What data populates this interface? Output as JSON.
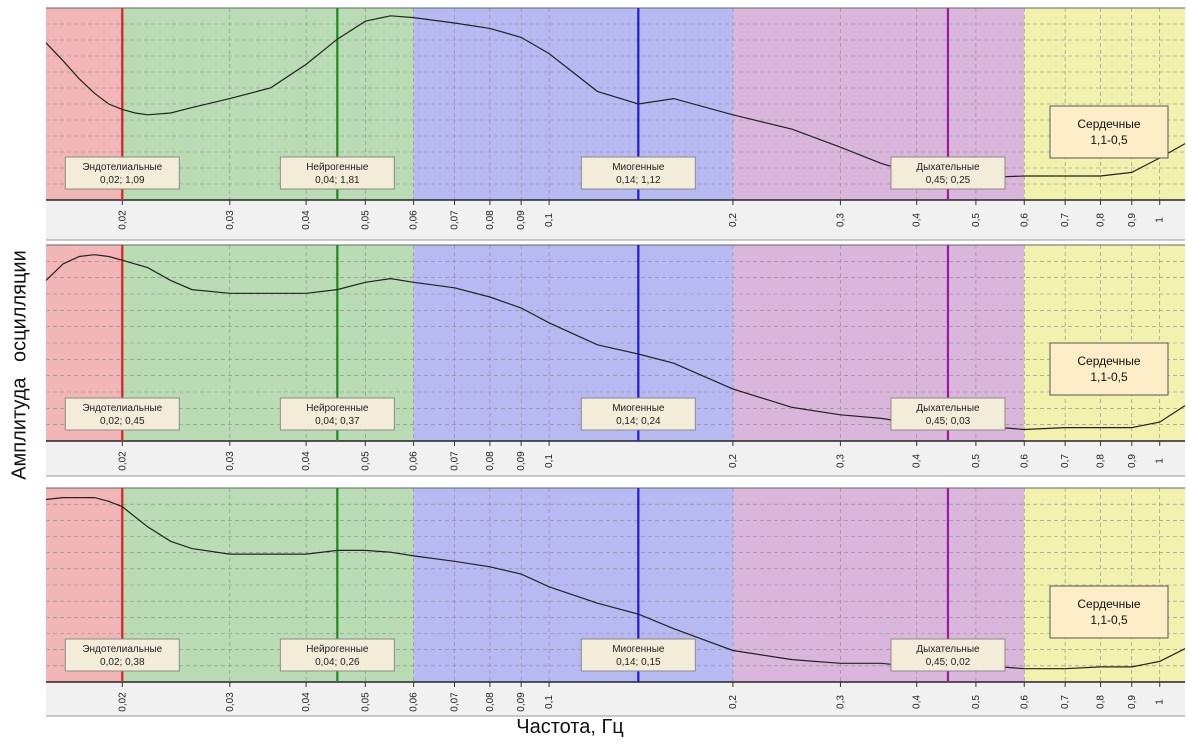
{
  "y_axis_label": "Амплитуда  осцилляции",
  "x_axis_label": "Частота, Гц",
  "chart_data": [
    {
      "type": "line",
      "xscale": "log",
      "xlim": [
        0.015,
        1.1
      ],
      "ylim": [
        0,
        1
      ],
      "grid": true,
      "x_ticks": [
        "0,02",
        "0,03",
        "0,04",
        "0,05",
        "0,06",
        "0,07",
        "0,08",
        "0,09",
        "0,1",
        "0,2",
        "0,3",
        "0,4",
        "0,5",
        "0,6",
        "0,7",
        "0,8",
        "0,9",
        "1"
      ],
      "bands": [
        {
          "name": "Эндотелиальные",
          "range": [
            0.015,
            0.02
          ],
          "color": "#f2b6b6"
        },
        {
          "name": "Эндотелиальные",
          "range": [
            0.02,
            0.06
          ],
          "color": "#b9dcb4"
        },
        {
          "name": "Миогенные",
          "range": [
            0.06,
            0.2
          ],
          "color": "#b7b9f2"
        },
        {
          "name": "Дыхательные",
          "range": [
            0.2,
            0.6
          ],
          "color": "#dbb6dc"
        },
        {
          "name": "Сердечные",
          "range": [
            0.6,
            1.1
          ],
          "color": "#f3f1ae"
        }
      ],
      "markers": [
        {
          "label": "Эндотелиальные",
          "value": "0,02; 1,09",
          "x": 0.02,
          "color": "#e01e1e"
        },
        {
          "label": "Нейрогенные",
          "value": "0,04; 1,81",
          "x": 0.045,
          "color": "#1a8a1a"
        },
        {
          "label": "Миогенные",
          "value": "0,14; 1,12",
          "x": 0.14,
          "color": "#1a1ae0"
        },
        {
          "label": "Дыхательные",
          "value": "0,45; 0,25",
          "x": 0.45,
          "color": "#9a1a9a"
        }
      ],
      "cardiac_box": {
        "title": "Сердечные",
        "range": "1,1-0,5"
      },
      "x": [
        0.015,
        0.016,
        0.017,
        0.018,
        0.019,
        0.02,
        0.021,
        0.022,
        0.024,
        0.026,
        0.03,
        0.035,
        0.04,
        0.045,
        0.05,
        0.055,
        0.06,
        0.07,
        0.08,
        0.09,
        0.1,
        0.12,
        0.14,
        0.16,
        0.2,
        0.25,
        0.3,
        0.35,
        0.4,
        0.45,
        0.5,
        0.6,
        0.7,
        0.8,
        0.9,
        1.0,
        1.1
      ],
      "values": [
        0.84,
        0.74,
        0.64,
        0.56,
        0.5,
        0.47,
        0.45,
        0.44,
        0.45,
        0.48,
        0.53,
        0.59,
        0.72,
        0.86,
        0.96,
        0.99,
        0.98,
        0.95,
        0.92,
        0.87,
        0.78,
        0.57,
        0.5,
        0.53,
        0.44,
        0.36,
        0.26,
        0.17,
        0.11,
        0.09,
        0.09,
        0.1,
        0.1,
        0.1,
        0.12,
        0.2,
        0.28
      ]
    },
    {
      "type": "line",
      "xscale": "log",
      "xlim": [
        0.015,
        1.1
      ],
      "ylim": [
        0,
        1
      ],
      "grid": true,
      "x_ticks": [
        "0,02",
        "0,03",
        "0,04",
        "0,05",
        "0,06",
        "0,07",
        "0,08",
        "0,09",
        "0,1",
        "0,2",
        "0,3",
        "0,4",
        "0,5",
        "0,6",
        "0,7",
        "0,8",
        "0,9",
        "1"
      ],
      "bands": [
        {
          "name": "Эндотелиальные",
          "range": [
            0.015,
            0.02
          ],
          "color": "#f2b6b6"
        },
        {
          "name": "Эндотелиальные",
          "range": [
            0.02,
            0.06
          ],
          "color": "#b9dcb4"
        },
        {
          "name": "Миогенные",
          "range": [
            0.06,
            0.2
          ],
          "color": "#b7b9f2"
        },
        {
          "name": "Дыхательные",
          "range": [
            0.2,
            0.6
          ],
          "color": "#dbb6dc"
        },
        {
          "name": "Сердечные",
          "range": [
            0.6,
            1.1
          ],
          "color": "#f3f1ae"
        }
      ],
      "markers": [
        {
          "label": "Эндотелиальные",
          "value": "0,02; 0,45",
          "x": 0.02,
          "color": "#e01e1e"
        },
        {
          "label": "Нейрогенные",
          "value": "0,04; 0,37",
          "x": 0.045,
          "color": "#1a8a1a"
        },
        {
          "label": "Миогенные",
          "value": "0,14; 0,24",
          "x": 0.14,
          "color": "#1a1ae0"
        },
        {
          "label": "Дыхательные",
          "value": "0,45; 0,03",
          "x": 0.45,
          "color": "#9a1a9a"
        }
      ],
      "cardiac_box": {
        "title": "Сердечные",
        "range": "1,1-0,5"
      },
      "x": [
        0.015,
        0.016,
        0.017,
        0.018,
        0.019,
        0.02,
        0.022,
        0.024,
        0.026,
        0.03,
        0.035,
        0.04,
        0.045,
        0.05,
        0.055,
        0.06,
        0.07,
        0.08,
        0.09,
        0.1,
        0.12,
        0.14,
        0.16,
        0.2,
        0.25,
        0.3,
        0.35,
        0.4,
        0.45,
        0.5,
        0.55,
        0.6,
        0.7,
        0.8,
        0.9,
        1.0,
        1.1
      ],
      "values": [
        0.84,
        0.93,
        0.97,
        0.98,
        0.97,
        0.95,
        0.91,
        0.84,
        0.79,
        0.77,
        0.77,
        0.77,
        0.79,
        0.83,
        0.85,
        0.83,
        0.8,
        0.75,
        0.69,
        0.61,
        0.49,
        0.44,
        0.39,
        0.25,
        0.15,
        0.11,
        0.09,
        0.06,
        0.03,
        0.03,
        0.04,
        0.03,
        0.04,
        0.04,
        0.04,
        0.07,
        0.16
      ]
    },
    {
      "type": "line",
      "xscale": "log",
      "xlim": [
        0.015,
        1.1
      ],
      "ylim": [
        0,
        1
      ],
      "grid": true,
      "x_ticks": [
        "0,02",
        "0,03",
        "0,04",
        "0,05",
        "0,06",
        "0,07",
        "0,08",
        "0,09",
        "0,1",
        "0,2",
        "0,3",
        "0,4",
        "0,5",
        "0,6",
        "0,7",
        "0,8",
        "0,9",
        "1"
      ],
      "bands": [
        {
          "name": "Эндотелиальные",
          "range": [
            0.015,
            0.02
          ],
          "color": "#f2b6b6"
        },
        {
          "name": "Эндотелиальные",
          "range": [
            0.02,
            0.06
          ],
          "color": "#b9dcb4"
        },
        {
          "name": "Миогенные",
          "range": [
            0.06,
            0.2
          ],
          "color": "#b7b9f2"
        },
        {
          "name": "Дыхательные",
          "range": [
            0.2,
            0.6
          ],
          "color": "#dbb6dc"
        },
        {
          "name": "Сердечные",
          "range": [
            0.6,
            1.1
          ],
          "color": "#f3f1ae"
        }
      ],
      "markers": [
        {
          "label": "Эндотелиальные",
          "value": "0,02; 0,38",
          "x": 0.02,
          "color": "#e01e1e"
        },
        {
          "label": "Нейрогенные",
          "value": "0,04; 0,26",
          "x": 0.045,
          "color": "#1a8a1a"
        },
        {
          "label": "Миогенные",
          "value": "0,14; 0,15",
          "x": 0.14,
          "color": "#1a1ae0"
        },
        {
          "label": "Дыхательные",
          "value": "0,45; 0,02",
          "x": 0.45,
          "color": "#9a1a9a"
        }
      ],
      "cardiac_box": {
        "title": "Сердечные",
        "range": "1,1-0,5"
      },
      "x": [
        0.015,
        0.016,
        0.017,
        0.018,
        0.019,
        0.02,
        0.022,
        0.024,
        0.026,
        0.03,
        0.035,
        0.04,
        0.045,
        0.05,
        0.055,
        0.06,
        0.07,
        0.08,
        0.09,
        0.1,
        0.12,
        0.14,
        0.16,
        0.2,
        0.25,
        0.3,
        0.35,
        0.4,
        0.45,
        0.5,
        0.55,
        0.6,
        0.7,
        0.8,
        0.9,
        1.0,
        1.1
      ],
      "values": [
        0.97,
        0.98,
        0.98,
        0.98,
        0.96,
        0.93,
        0.82,
        0.74,
        0.7,
        0.67,
        0.67,
        0.67,
        0.69,
        0.69,
        0.68,
        0.66,
        0.63,
        0.6,
        0.56,
        0.49,
        0.4,
        0.34,
        0.26,
        0.14,
        0.09,
        0.07,
        0.07,
        0.05,
        0.04,
        0.05,
        0.05,
        0.04,
        0.04,
        0.05,
        0.05,
        0.08,
        0.15
      ]
    }
  ]
}
